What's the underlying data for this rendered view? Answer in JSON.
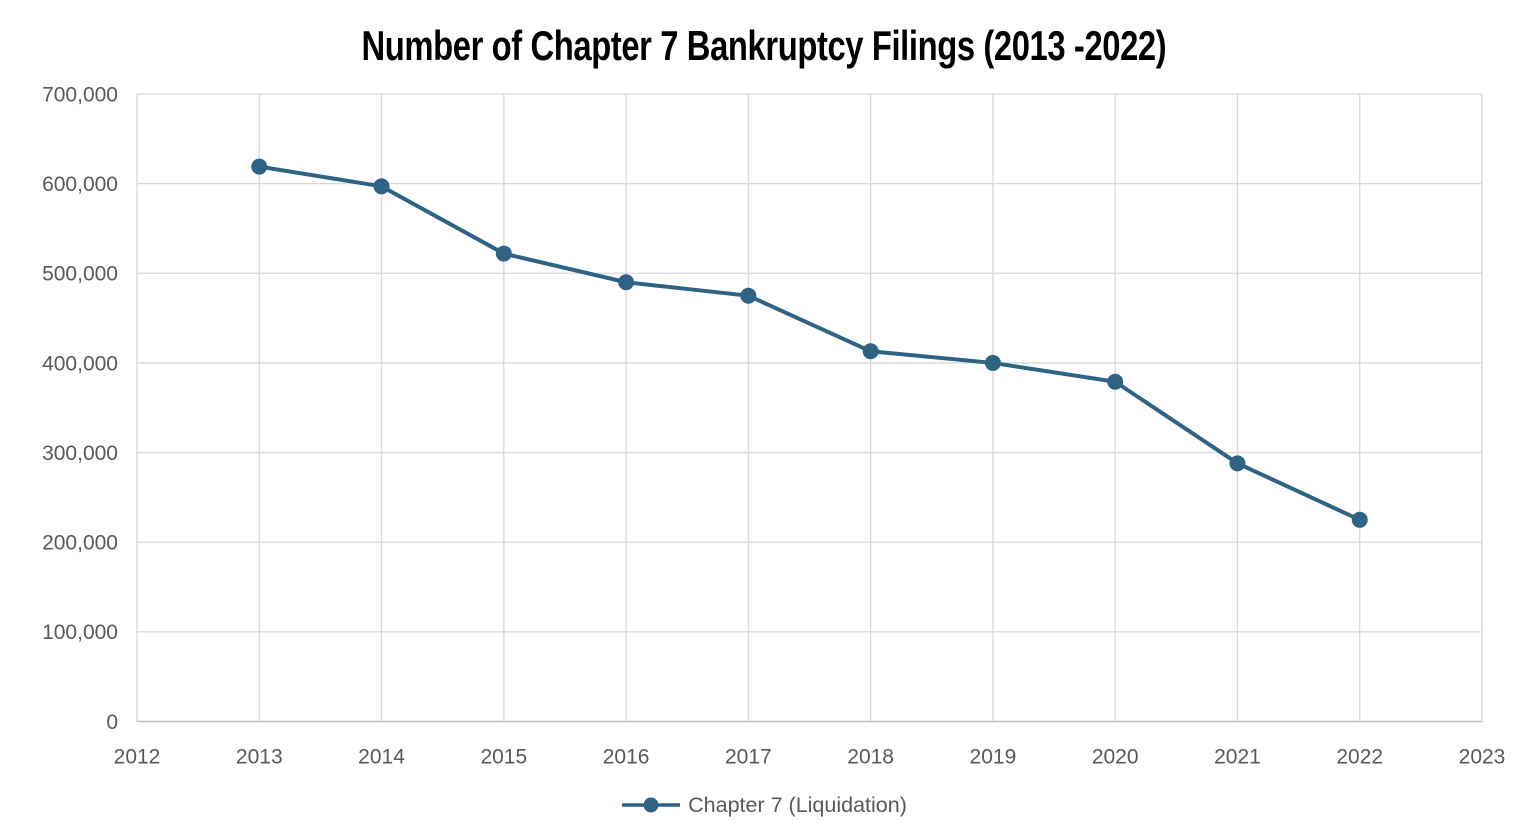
{
  "chart_data": {
    "type": "line",
    "title": "Number of Chapter 7 Bankruptcy Filings (2013 -2022)",
    "x": [
      2013,
      2014,
      2015,
      2016,
      2017,
      2018,
      2019,
      2020,
      2021,
      2022
    ],
    "series": [
      {
        "name": "Chapter 7 (Liquidation)",
        "values": [
          619000,
          597000,
          522000,
          490000,
          475000,
          413000,
          400000,
          379000,
          288000,
          225000
        ],
        "color": "#2E6384",
        "marker": "circle"
      }
    ],
    "xlabel": "",
    "ylabel": "",
    "xlim": [
      2012,
      2023
    ],
    "ylim": [
      0,
      700000
    ],
    "x_ticks": [
      2012,
      2013,
      2014,
      2015,
      2016,
      2017,
      2018,
      2019,
      2020,
      2021,
      2022,
      2023
    ],
    "x_tick_labels": [
      "2012",
      "2013",
      "2014",
      "2015",
      "2016",
      "2017",
      "2018",
      "2019",
      "2020",
      "2021",
      "2022",
      "2023"
    ],
    "y_ticks": [
      0,
      100000,
      200000,
      300000,
      400000,
      500000,
      600000,
      700000
    ],
    "y_tick_labels": [
      "0",
      "100,000",
      "200,000",
      "300,000",
      "400,000",
      "500,000",
      "600,000",
      "700,000"
    ],
    "grid": true,
    "legend": {
      "position": "bottom",
      "entries": [
        "Chapter 7 (Liquidation)"
      ]
    },
    "colors": {
      "background": "#FFFFFF",
      "gridline": "#D9D9D9",
      "axis_line": "#BFBFBF",
      "tick_label": "#595959",
      "legend_label": "#595959",
      "title": "#000000"
    }
  }
}
